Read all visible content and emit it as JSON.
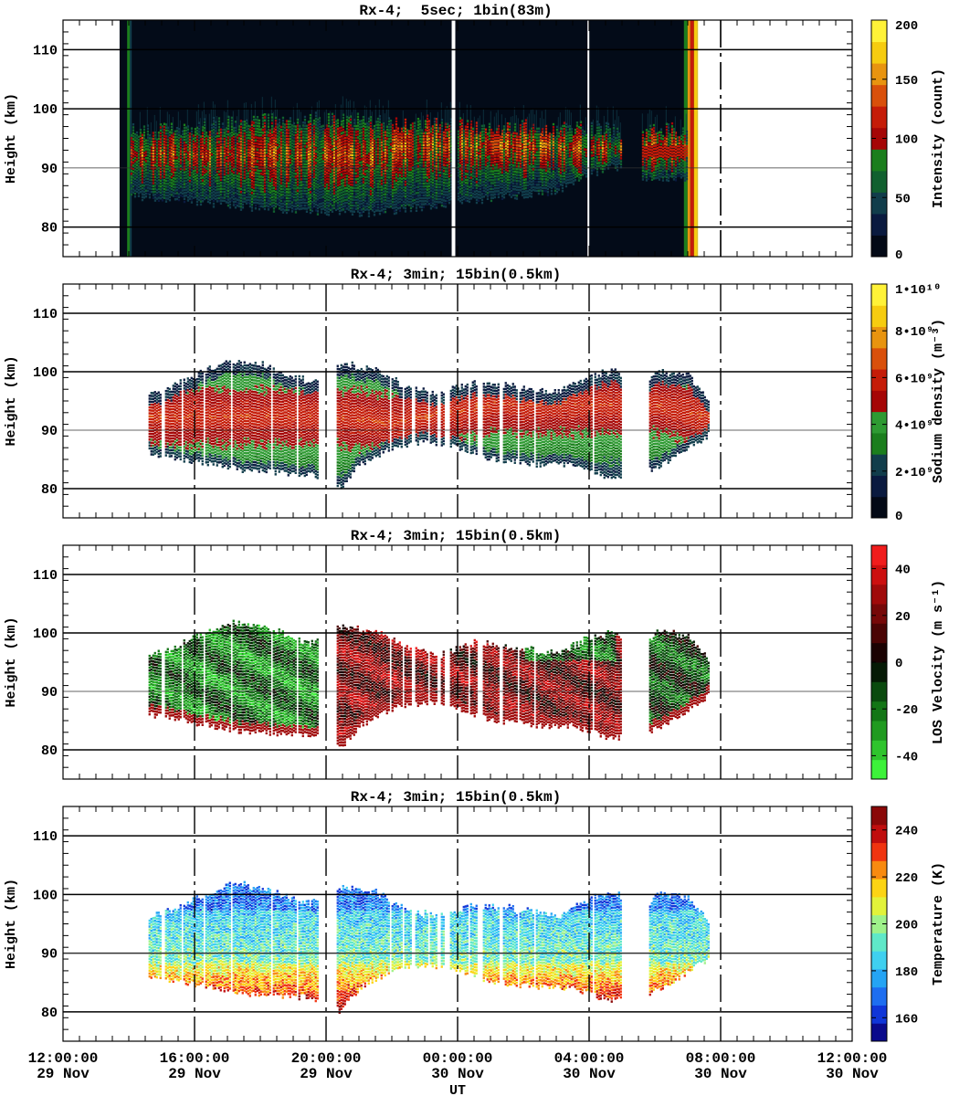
{
  "chart_data": [
    {
      "type": "heatmap",
      "title": "Rx-4;  5sec; 1bin(83m)",
      "ylabel": "Height (km)",
      "xlabel": "",
      "ylim": [
        75,
        115
      ],
      "yticks": [
        80,
        90,
        100,
        110
      ],
      "xlim_hours": [
        12,
        36
      ],
      "colorbar": {
        "label": "Intensity (count)",
        "range": [
          0,
          200
        ],
        "ticks": [
          "0",
          "50",
          "100",
          "150",
          "200"
        ],
        "tick_values": [
          0,
          50,
          100,
          150,
          200
        ],
        "colors": [
          "#030916",
          "#0a1a3f",
          "#113d4b",
          "#11602f",
          "#1b7e1d",
          "#a50606",
          "#c51c08",
          "#d9500b",
          "#e89410",
          "#f6cc10",
          "#fff238"
        ]
      },
      "layer_top_km": [
        {
          "x": 14.5,
          "v": 96
        },
        {
          "x": 19,
          "v": 98
        },
        {
          "x": 24,
          "v": 97
        },
        {
          "x": 29,
          "v": 96
        }
      ],
      "layer_bottom_km": [
        {
          "x": 14.5,
          "v": 85
        },
        {
          "x": 18,
          "v": 83
        },
        {
          "x": 21,
          "v": 82
        },
        {
          "x": 24,
          "v": 84
        },
        {
          "x": 27,
          "v": 86
        },
        {
          "x": 28.5,
          "v": 90
        }
      ],
      "data_gaps": [
        [
          23.8,
          23.95
        ],
        [
          27.9,
          28.0
        ]
      ],
      "observation_range_hours": [
        13.7,
        31.5
      ]
    },
    {
      "type": "heatmap",
      "title": "Rx-4; 3min; 15bin(0.5km)",
      "ylabel": "Height (km)",
      "ylim": [
        75,
        115
      ],
      "yticks": [
        80,
        90,
        100,
        110
      ],
      "colorbar": {
        "label": "Sodium density (m⁻³)",
        "range": [
          0,
          10000000000.0
        ],
        "ticks": [
          "0",
          "2•10⁹",
          "4•10⁹",
          "6•10⁹",
          "8•10⁹",
          "1•10¹⁰"
        ],
        "tick_values": [
          0,
          2000000000.0,
          4000000000.0,
          6000000000.0,
          8000000000.0,
          10000000000.0
        ],
        "colors": [
          "#030916",
          "#0a1a3f",
          "#113d4b",
          "#1b7e1d",
          "#2e9a32",
          "#a50606",
          "#c51c08",
          "#d9500b",
          "#e89410",
          "#f6cc10",
          "#fff238"
        ]
      },
      "peak_layer_km": [
        {
          "x": 16.5,
          "v": 92
        },
        {
          "x": 20,
          "v": 92
        },
        {
          "x": 22,
          "v": 91
        },
        {
          "x": 25,
          "v": 94
        },
        {
          "x": 28,
          "v": 94
        },
        {
          "x": 30,
          "v": 94
        },
        {
          "x": 31.5,
          "v": 92
        }
      ],
      "observation_range_hours": [
        14.6,
        31.6
      ]
    },
    {
      "type": "heatmap",
      "title": "Rx-4; 3min; 15bin(0.5km)",
      "ylabel": "Height (km)",
      "ylim": [
        75,
        115
      ],
      "yticks": [
        80,
        90,
        100,
        110
      ],
      "colorbar": {
        "label": "LOS Velocity (m s⁻¹)",
        "range": [
          -50,
          50
        ],
        "ticks": [
          "-40",
          "-20",
          "0",
          "20",
          "40"
        ],
        "tick_values": [
          -40,
          -20,
          0,
          20,
          40
        ],
        "colors": [
          "#3df23a",
          "#2fc42d",
          "#209a20",
          "#137616",
          "#0a4a0e",
          "#051a05",
          "#1a0202",
          "#4a0404",
          "#760808",
          "#a00a0a",
          "#cc0f0f",
          "#f01c1c"
        ]
      },
      "observation_range_hours": [
        14.6,
        31.6
      ]
    },
    {
      "type": "heatmap",
      "title": "Rx-4; 3min; 15bin(0.5km)",
      "ylabel": "Height (km)",
      "xlabel": "UT",
      "ylim": [
        75,
        115
      ],
      "yticks": [
        80,
        90,
        100,
        110
      ],
      "colorbar": {
        "label": "Temperature (K)",
        "range": [
          150,
          250
        ],
        "ticks": [
          "160",
          "180",
          "200",
          "220",
          "240"
        ],
        "tick_values": [
          160,
          180,
          200,
          220,
          240
        ],
        "colors": [
          "#0a0a8c",
          "#1036d8",
          "#1e6ef0",
          "#25a4f4",
          "#3fd0f0",
          "#5fe8c8",
          "#9ef28a",
          "#e2f23a",
          "#fcd414",
          "#f88a10",
          "#f03410",
          "#c00e0e",
          "#8a0808"
        ]
      },
      "observation_range_hours": [
        14.6,
        31.6
      ]
    }
  ],
  "x_axis": {
    "ticks": [
      {
        "time": "12:00:00",
        "date": "29 Nov"
      },
      {
        "time": "16:00:00",
        "date": "29 Nov"
      },
      {
        "time": "20:00:00",
        "date": "29 Nov"
      },
      {
        "time": "00:00:00",
        "date": "30 Nov"
      },
      {
        "time": "04:00:00",
        "date": "30 Nov"
      },
      {
        "time": "08:00:00",
        "date": "30 Nov"
      },
      {
        "time": "12:00:00",
        "date": "30 Nov"
      }
    ],
    "label": "UT"
  }
}
